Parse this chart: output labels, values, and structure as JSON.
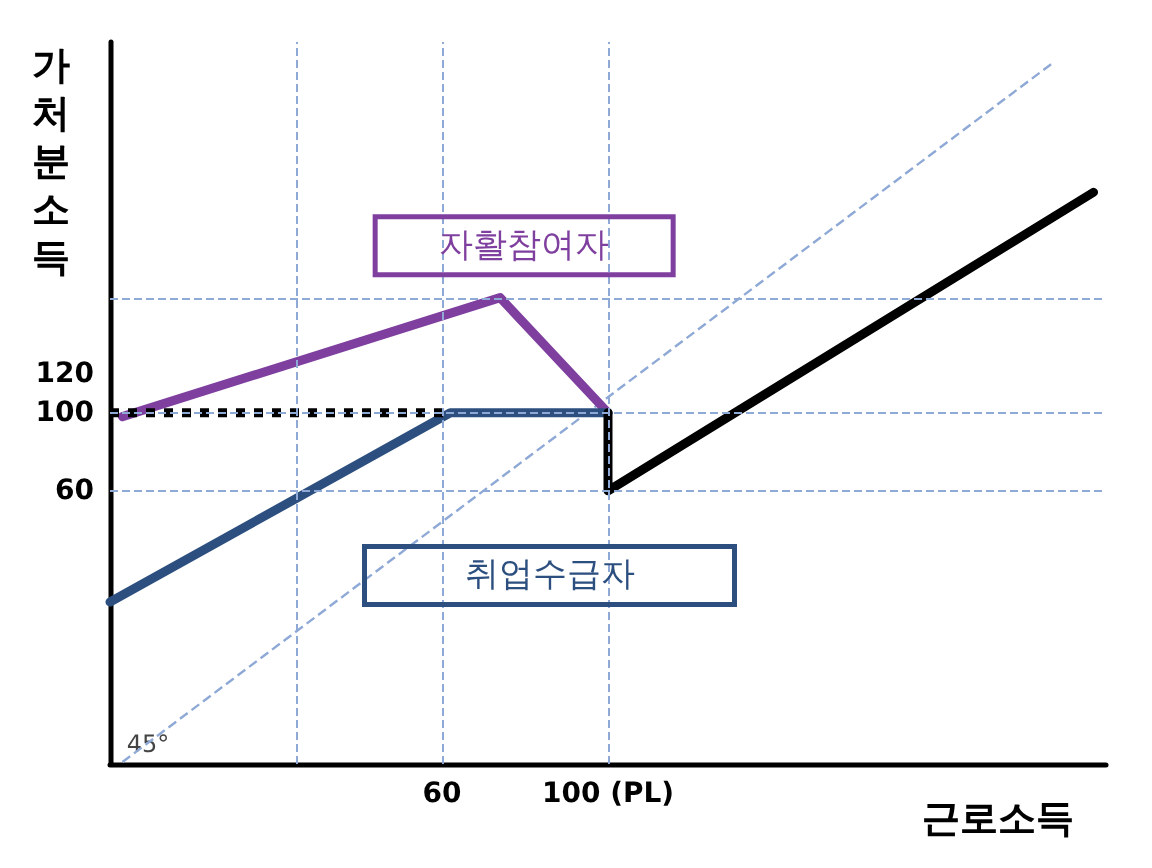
{
  "chart_data": {
    "type": "line",
    "xlabel": "근로소득",
    "ylabel": "가처분소득",
    "xlim": [
      -20,
      220
    ],
    "ylim": [
      -80,
      290
    ],
    "xticks": [
      60,
      {
        "value": 100,
        "label": "100 (PL)"
      }
    ],
    "yticks": [
      60,
      100,
      120
    ],
    "marker": "none",
    "series": [
      {
        "name": "자활참여자",
        "color": "#7f3f9f",
        "x": [
          -17,
          74,
          100
        ],
        "values": [
          98,
          159,
          100
        ]
      },
      {
        "name": "취업수급자",
        "color": "#2c4f7f",
        "x": [
          -20,
          62,
          100
        ],
        "values": [
          3,
          100,
          100
        ]
      },
      {
        "color": "#000000",
        "x": [
          -20,
          62
        ],
        "values": [
          100,
          100
        ],
        "line_style": "dotted"
      },
      {
        "color": "#000000",
        "x": [
          100,
          100,
          217
        ],
        "values": [
          100,
          60,
          213
        ]
      },
      {
        "color": "#8fa9d6",
        "x": [
          -17,
          207
        ],
        "values": [
          -79,
          279
        ],
        "line_style": "dashed"
      }
    ],
    "ref_lines": [
      {
        "axis": "x",
        "value": 25,
        "color": "#8fa9d6",
        "line_style": "dashed"
      },
      {
        "axis": "x",
        "value": 60,
        "color": "#8fa9d6",
        "line_style": "dashed"
      },
      {
        "axis": "x",
        "value": 100,
        "color": "#8fa9d6",
        "line_style": "dashed"
      },
      {
        "axis": "y",
        "value": 60,
        "color": "#8fa9d6",
        "line_style": "dashed"
      },
      {
        "axis": "y",
        "value": 100,
        "color": "#8fa9d6",
        "line_style": "dashed"
      },
      {
        "axis": "y",
        "value": 159,
        "color": "#8fa9d6",
        "line_style": "dashed"
      }
    ],
    "annotations": [
      "45°"
    ]
  }
}
